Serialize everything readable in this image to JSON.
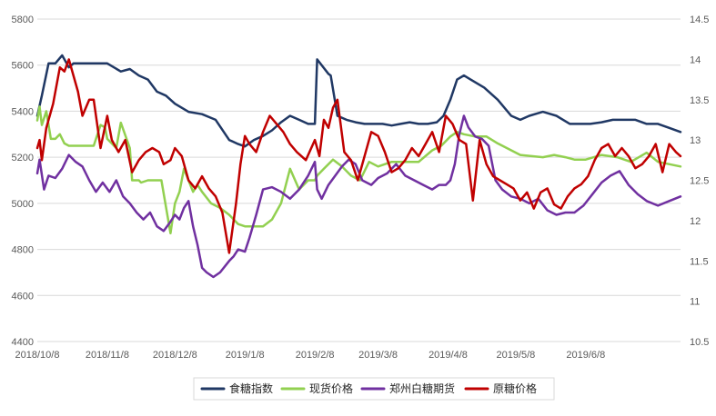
{
  "chart_data": {
    "type": "line",
    "title": "",
    "xlabel": "",
    "ylabel": "",
    "x_ticks": [
      "2018/10/8",
      "2018/11/8",
      "2018/12/8",
      "2019/1/8",
      "2019/2/8",
      "2019/3/8",
      "2019/4/8",
      "2019/5/8",
      "2019/6/8"
    ],
    "x_range": [
      "2018/10/8",
      "2019/7/20"
    ],
    "y_left": {
      "ticks": [
        4400,
        4600,
        4800,
        5000,
        5200,
        5400,
        5600,
        5800
      ],
      "range": [
        4400,
        5800
      ]
    },
    "y_right": {
      "ticks": [
        10.5,
        11,
        11.5,
        12,
        12.5,
        13,
        13.5,
        14,
        14.5
      ],
      "range": [
        10.5,
        14.5
      ]
    },
    "grid": "horizontal",
    "legend_position": "bottom",
    "series": [
      {
        "name": "食糖指数",
        "axis": "right",
        "color": "#203864",
        "x": [
          "2018/10/8",
          "2018/10/10",
          "2018/10/13",
          "2018/10/16",
          "2018/10/19",
          "2018/10/22",
          "2018/10/24",
          "2018/10/28",
          "2018/11/2",
          "2018/11/8",
          "2018/11/14",
          "2018/11/18",
          "2018/11/22",
          "2018/11/26",
          "2018/11/30",
          "2018/12/4",
          "2018/12/8",
          "2018/12/14",
          "2018/12/20",
          "2018/12/26",
          "2019/1/1",
          "2019/1/5",
          "2019/1/8",
          "2019/1/12",
          "2019/1/16",
          "2019/1/20",
          "2019/1/24",
          "2019/1/28",
          "2019/2/1",
          "2019/2/5",
          "2019/2/7",
          "2019/2/8",
          "2019/2/9",
          "2019/2/14",
          "2019/2/15",
          "2019/2/18",
          "2019/2/22",
          "2019/2/26",
          "2019/3/2",
          "2019/3/6",
          "2019/3/10",
          "2019/3/14",
          "2019/3/18",
          "2019/3/22",
          "2019/3/26",
          "2019/3/30",
          "2019/4/3",
          "2019/4/6",
          "2019/4/9",
          "2019/4/12",
          "2019/4/15",
          "2019/4/18",
          "2019/4/24",
          "2019/4/30",
          "2019/5/6",
          "2019/5/10",
          "2019/5/14",
          "2019/5/20",
          "2019/5/26",
          "2019/6/1",
          "2019/6/5",
          "2019/6/10",
          "2019/6/15",
          "2019/6/20",
          "2019/6/25",
          "2019/6/30",
          "2019/7/5",
          "2019/7/10",
          "2019/7/15",
          "2019/7/20"
        ],
        "values": [
          13.3,
          13.55,
          13.95,
          13.95,
          14.05,
          13.9,
          13.95,
          13.95,
          13.95,
          13.95,
          13.85,
          13.88,
          13.8,
          13.75,
          13.6,
          13.55,
          13.45,
          13.35,
          13.32,
          13.25,
          13.0,
          12.95,
          12.92,
          13.0,
          13.05,
          13.12,
          13.22,
          13.3,
          13.25,
          13.2,
          13.2,
          13.2,
          14.0,
          13.82,
          13.8,
          13.3,
          13.25,
          13.22,
          13.2,
          13.2,
          13.2,
          13.18,
          13.2,
          13.22,
          13.2,
          13.2,
          13.22,
          13.3,
          13.5,
          13.75,
          13.8,
          13.75,
          13.65,
          13.5,
          13.3,
          13.25,
          13.3,
          13.35,
          13.3,
          13.2,
          13.2,
          13.2,
          13.22,
          13.25,
          13.25,
          13.25,
          13.2,
          13.2,
          13.15,
          13.1
        ]
      },
      {
        "name": "现货价格",
        "axis": "left",
        "color": "#92d050",
        "x": [
          "2018/10/8",
          "2018/10/9",
          "2018/10/10",
          "2018/10/12",
          "2018/10/14",
          "2018/10/16",
          "2018/10/18",
          "2018/10/20",
          "2018/10/22",
          "2018/10/25",
          "2018/10/28",
          "2018/11/2",
          "2018/11/5",
          "2018/11/7",
          "2018/11/8",
          "2018/11/12",
          "2018/11/14",
          "2018/11/18",
          "2018/11/19",
          "2018/11/22",
          "2018/11/23",
          "2018/11/26",
          "2018/11/30",
          "2018/12/2",
          "2018/12/6",
          "2018/12/8",
          "2018/12/10",
          "2018/12/12",
          "2018/12/14",
          "2018/12/16",
          "2018/12/18",
          "2018/12/20",
          "2018/12/24",
          "2018/12/28",
          "2019/1/1",
          "2019/1/5",
          "2019/1/8",
          "2019/1/12",
          "2019/1/16",
          "2019/1/20",
          "2019/1/24",
          "2019/1/28",
          "2019/2/1",
          "2019/2/5",
          "2019/2/8",
          "2019/2/9",
          "2019/2/12",
          "2019/2/16",
          "2019/2/20",
          "2019/2/24",
          "2019/2/28",
          "2019/3/4",
          "2019/3/8",
          "2019/3/14",
          "2019/3/20",
          "2019/3/26",
          "2019/4/1",
          "2019/4/5",
          "2019/4/9",
          "2019/4/12",
          "2019/4/15",
          "2019/4/20",
          "2019/4/25",
          "2019/4/30",
          "2019/5/10",
          "2019/5/20",
          "2019/5/25",
          "2019/5/30",
          "2019/6/3",
          "2019/6/8",
          "2019/6/15",
          "2019/6/22",
          "2019/6/28",
          "2019/7/5",
          "2019/7/10",
          "2019/7/20"
        ],
        "values": [
          5360,
          5420,
          5340,
          5400,
          5280,
          5280,
          5300,
          5260,
          5250,
          5250,
          5250,
          5250,
          5340,
          5330,
          5280,
          5240,
          5350,
          5240,
          5100,
          5100,
          5090,
          5100,
          5100,
          5100,
          4870,
          5000,
          5050,
          5150,
          5100,
          5050,
          5080,
          5050,
          5000,
          4980,
          4950,
          4910,
          4900,
          4900,
          4900,
          4930,
          5000,
          5150,
          5060,
          5100,
          5100,
          5120,
          5150,
          5190,
          5160,
          5120,
          5100,
          5180,
          5160,
          5180,
          5180,
          5180,
          5230,
          5250,
          5290,
          5310,
          5300,
          5290,
          5290,
          5260,
          5210,
          5200,
          5210,
          5200,
          5190,
          5190,
          5210,
          5200,
          5180,
          5220,
          5180,
          5160
        ]
      },
      {
        "name": "郑州白糖期货",
        "axis": "left",
        "color": "#7030a0",
        "x": [
          "2018/10/8",
          "2018/10/9",
          "2018/10/11",
          "2018/10/13",
          "2018/10/16",
          "2018/10/19",
          "2018/10/22",
          "2018/10/25",
          "2018/10/28",
          "2018/10/31",
          "2018/11/3",
          "2018/11/6",
          "2018/11/9",
          "2018/11/12",
          "2018/11/15",
          "2018/11/18",
          "2018/11/21",
          "2018/11/24",
          "2018/11/27",
          "2018/11/30",
          "2018/12/3",
          "2018/12/6",
          "2018/12/8",
          "2018/12/10",
          "2018/12/12",
          "2018/12/14",
          "2018/12/16",
          "2018/12/18",
          "2018/12/20",
          "2018/12/22",
          "2018/12/25",
          "2018/12/28",
          "2019/1/1",
          "2019/1/3",
          "2019/1/5",
          "2019/1/8",
          "2019/1/10",
          "2019/1/13",
          "2019/1/16",
          "2019/1/20",
          "2019/1/24",
          "2019/1/28",
          "2019/2/1",
          "2019/2/5",
          "2019/2/8",
          "2019/2/9",
          "2019/2/11",
          "2019/2/14",
          "2019/2/17",
          "2019/2/20",
          "2019/2/23",
          "2019/2/26",
          "2019/3/1",
          "2019/3/5",
          "2019/3/8",
          "2019/3/12",
          "2019/3/16",
          "2019/3/20",
          "2019/3/24",
          "2019/3/28",
          "2019/4/1",
          "2019/4/4",
          "2019/4/7",
          "2019/4/9",
          "2019/4/11",
          "2019/4/13",
          "2019/4/15",
          "2019/4/17",
          "2019/4/20",
          "2019/4/23",
          "2019/4/26",
          "2019/4/29",
          "2019/5/2",
          "2019/5/6",
          "2019/5/10",
          "2019/5/14",
          "2019/5/18",
          "2019/5/22",
          "2019/5/26",
          "2019/5/30",
          "2019/6/3",
          "2019/6/7",
          "2019/6/11",
          "2019/6/15",
          "2019/6/19",
          "2019/6/23",
          "2019/6/27",
          "2019/7/1",
          "2019/7/5",
          "2019/7/10",
          "2019/7/15",
          "2019/7/20"
        ],
        "values": [
          5130,
          5190,
          5060,
          5120,
          5110,
          5150,
          5210,
          5180,
          5160,
          5100,
          5050,
          5090,
          5050,
          5100,
          5030,
          5000,
          4960,
          4930,
          4960,
          4900,
          4880,
          4920,
          4950,
          4930,
          4980,
          5010,
          4900,
          4820,
          4720,
          4700,
          4680,
          4700,
          4750,
          4770,
          4800,
          4790,
          4850,
          4950,
          5060,
          5070,
          5050,
          5020,
          5060,
          5120,
          5180,
          5060,
          5020,
          5080,
          5120,
          5160,
          5190,
          5170,
          5100,
          5080,
          5110,
          5130,
          5170,
          5120,
          5100,
          5080,
          5060,
          5080,
          5080,
          5100,
          5170,
          5300,
          5380,
          5330,
          5290,
          5280,
          5250,
          5100,
          5060,
          5030,
          5020,
          5000,
          5020,
          4970,
          4950,
          4960,
          4960,
          4990,
          5040,
          5090,
          5120,
          5140,
          5080,
          5040,
          5010,
          4990,
          5010,
          5030
        ]
      },
      {
        "name": "原糖价格",
        "axis": "right",
        "color": "#c00000",
        "x": [
          "2018/10/8",
          "2018/10/9",
          "2018/10/10",
          "2018/10/12",
          "2018/10/15",
          "2018/10/18",
          "2018/10/20",
          "2018/10/22",
          "2018/10/24",
          "2018/10/26",
          "2018/10/28",
          "2018/10/31",
          "2018/11/2",
          "2018/11/5",
          "2018/11/8",
          "2018/11/10",
          "2018/11/13",
          "2018/11/16",
          "2018/11/19",
          "2018/11/22",
          "2018/11/25",
          "2018/11/28",
          "2018/12/1",
          "2018/12/3",
          "2018/12/6",
          "2018/12/8",
          "2018/12/11",
          "2018/12/14",
          "2018/12/17",
          "2018/12/20",
          "2018/12/23",
          "2018/12/26",
          "2018/12/29",
          "2019/1/1",
          "2019/1/4",
          "2019/1/6",
          "2019/1/8",
          "2019/1/10",
          "2019/1/13",
          "2019/1/16",
          "2019/1/19",
          "2019/1/22",
          "2019/1/25",
          "2019/1/28",
          "2019/1/31",
          "2019/2/4",
          "2019/2/8",
          "2019/2/10",
          "2019/2/12",
          "2019/2/14",
          "2019/2/16",
          "2019/2/18",
          "2019/2/21",
          "2019/2/24",
          "2019/2/27",
          "2019/3/2",
          "2019/3/5",
          "2019/3/8",
          "2019/3/11",
          "2019/3/14",
          "2019/3/17",
          "2019/3/20",
          "2019/3/23",
          "2019/3/26",
          "2019/3/29",
          "2019/4/1",
          "2019/4/4",
          "2019/4/7",
          "2019/4/10",
          "2019/4/13",
          "2019/4/16",
          "2019/4/19",
          "2019/4/22",
          "2019/4/25",
          "2019/4/28",
          "2019/5/1",
          "2019/5/4",
          "2019/5/7",
          "2019/5/10",
          "2019/5/13",
          "2019/5/16",
          "2019/5/19",
          "2019/5/22",
          "2019/5/25",
          "2019/5/28",
          "2019/5/31",
          "2019/6/3",
          "2019/6/6",
          "2019/6/9",
          "2019/6/12",
          "2019/6/15",
          "2019/6/18",
          "2019/6/21",
          "2019/6/24",
          "2019/6/27",
          "2019/6/30",
          "2019/7/3",
          "2019/7/6",
          "2019/7/9",
          "2019/7/12",
          "2019/7/15",
          "2019/7/18",
          "2019/7/20"
        ],
        "values": [
          12.9,
          13.0,
          12.75,
          13.15,
          13.45,
          13.9,
          13.85,
          14.0,
          13.8,
          13.6,
          13.3,
          13.5,
          13.5,
          12.9,
          13.3,
          13.0,
          12.85,
          13.0,
          12.6,
          12.75,
          12.85,
          12.9,
          12.85,
          12.7,
          12.75,
          12.9,
          12.8,
          12.5,
          12.4,
          12.55,
          12.4,
          12.3,
          12.1,
          11.6,
          12.2,
          12.7,
          13.05,
          12.95,
          12.85,
          13.1,
          13.3,
          13.2,
          13.1,
          12.95,
          12.85,
          12.75,
          13.0,
          12.8,
          13.25,
          13.15,
          13.4,
          13.5,
          12.85,
          12.75,
          12.5,
          12.8,
          13.1,
          13.05,
          12.85,
          12.6,
          12.65,
          12.75,
          12.9,
          12.8,
          12.95,
          13.1,
          12.85,
          13.3,
          13.2,
          13.0,
          12.95,
          12.25,
          13.0,
          12.7,
          12.55,
          12.5,
          12.45,
          12.4,
          12.25,
          12.35,
          12.15,
          12.35,
          12.4,
          12.2,
          12.15,
          12.3,
          12.4,
          12.45,
          12.55,
          12.75,
          12.9,
          12.95,
          12.8,
          12.9,
          12.8,
          12.65,
          12.7,
          12.8,
          12.95,
          12.6,
          12.95,
          12.85,
          12.8
        ]
      }
    ]
  }
}
